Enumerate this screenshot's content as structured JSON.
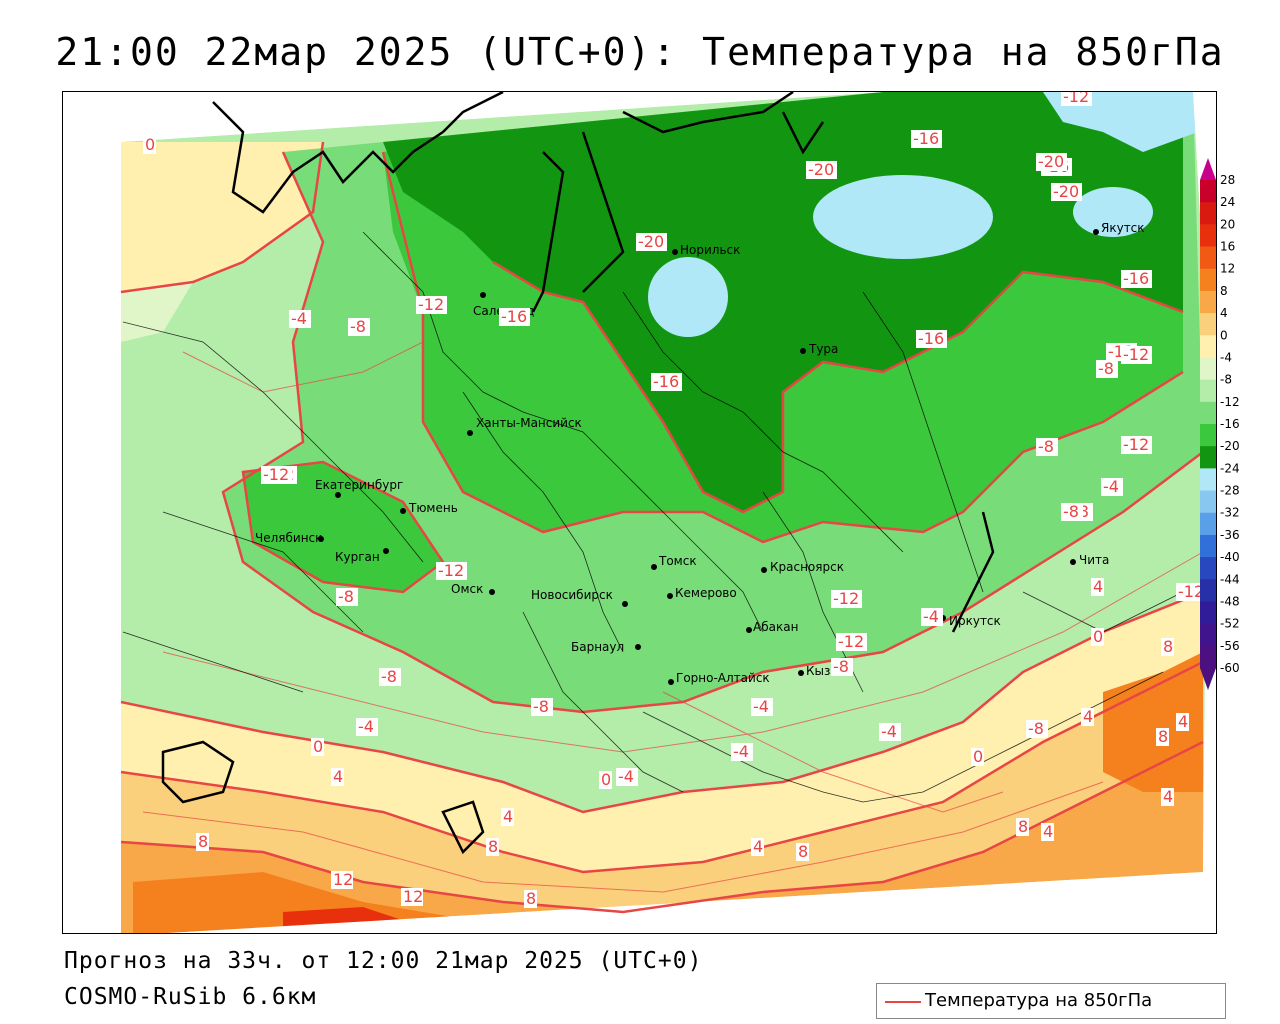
{
  "header": {
    "title": "21:00 22мар 2025 (UTC+0): Температура на 850гПа"
  },
  "footer": {
    "forecast": "Прогноз на 33ч. от 12:00 21мар 2025 (UTC+0)",
    "model": "COSMO-RuSib 6.6км"
  },
  "legend": {
    "line_label": "Температура на 850гПа",
    "line_color": "#e84545"
  },
  "color_scale": {
    "labels": [
      "28",
      "24",
      "20",
      "16",
      "12",
      "8",
      "4",
      "0",
      "-4",
      "-8",
      "-12",
      "-16",
      "-20",
      "-24",
      "-28",
      "-32",
      "-36",
      "-40",
      "-44",
      "-48",
      "-52",
      "-56",
      "-60"
    ],
    "colors": [
      "#c8002a",
      "#d81a10",
      "#e8300c",
      "#f05a14",
      "#f5801e",
      "#f8a848",
      "#fbd07c",
      "#fff0b0",
      "#e0f6c8",
      "#b4ecaa",
      "#78dc78",
      "#3cc83c",
      "#129612",
      "#b0e8f8",
      "#88c8f0",
      "#5aa0e8",
      "#3070d8",
      "#2848c0",
      "#2830a8",
      "#301c98",
      "#40148c",
      "#4c1080"
    ]
  },
  "isotherm_labels": [
    "0",
    "-4",
    "-8",
    "-12",
    "-16",
    "-20",
    "-16",
    "-12",
    "-16",
    "-20",
    "-20",
    "-20",
    "-16",
    "-16",
    "-16",
    "-12",
    "-8",
    "-12",
    "-12",
    "-12",
    "-8",
    "-12",
    "-8",
    "-12",
    "-8",
    "-4",
    "0",
    "4",
    "8",
    "12",
    "12",
    "8",
    "4",
    "8",
    "0",
    "-4",
    "-4",
    "-4",
    "4",
    "4",
    "4",
    "8",
    "8",
    "4",
    "8",
    "8",
    "4",
    "0",
    "-4",
    "0",
    "-4",
    "-8",
    "-12",
    "-8",
    "-12",
    "-8",
    "4",
    "8",
    "-4",
    "-8",
    "-12",
    "-8"
  ],
  "cities": [
    {
      "name": "Салехард"
    },
    {
      "name": "Норильск"
    },
    {
      "name": "Якутск"
    },
    {
      "name": "Тура"
    },
    {
      "name": "Ханты-Мансийск"
    },
    {
      "name": "Екатеринбург"
    },
    {
      "name": "Тюмень"
    },
    {
      "name": "Челябинск"
    },
    {
      "name": "Курган"
    },
    {
      "name": "Омск"
    },
    {
      "name": "Томск"
    },
    {
      "name": "Новосибирск"
    },
    {
      "name": "Кемерово"
    },
    {
      "name": "Красноярск"
    },
    {
      "name": "Абакан"
    },
    {
      "name": "Барнаул"
    },
    {
      "name": "Горно-Алтайск"
    },
    {
      "name": "Кызыл"
    },
    {
      "name": "Иркутск"
    },
    {
      "name": "Чита"
    }
  ]
}
